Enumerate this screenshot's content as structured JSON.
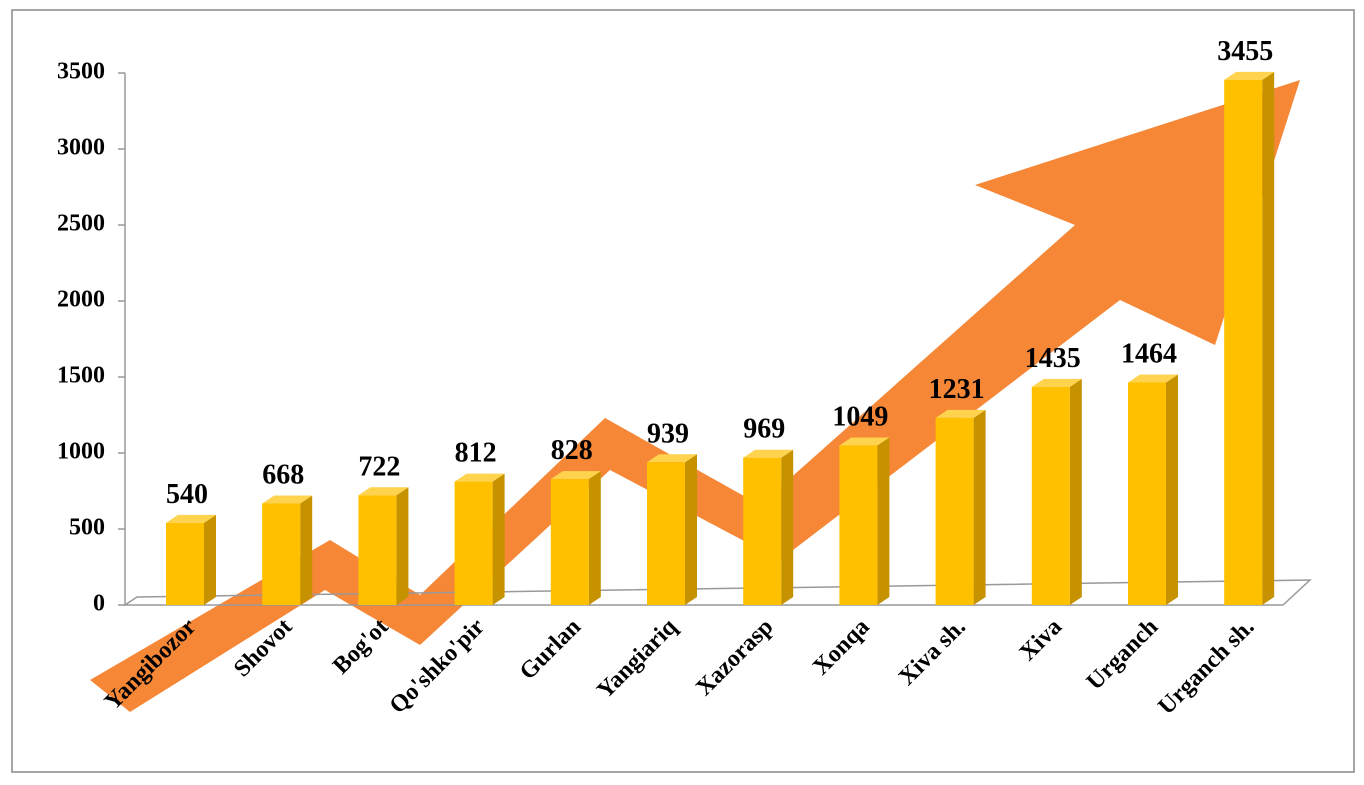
{
  "chart_data": {
    "type": "bar",
    "categories": [
      "Yangibozor",
      "Shovot",
      "Bog'ot",
      "Qo'shko'pir",
      "Gurlan",
      "Yangiariq",
      "Xazorasp",
      "Xonqa",
      "Xiva sh.",
      "Xiva",
      "Urganch",
      "Urganch sh."
    ],
    "values": [
      540,
      668,
      722,
      812,
      828,
      939,
      969,
      1049,
      1231,
      1435,
      1464,
      3455
    ],
    "color": "#ffc000",
    "ylim": [
      0,
      3500
    ],
    "yticks": [
      0,
      500,
      1000,
      1500,
      2000,
      2500,
      3000,
      3500
    ]
  }
}
